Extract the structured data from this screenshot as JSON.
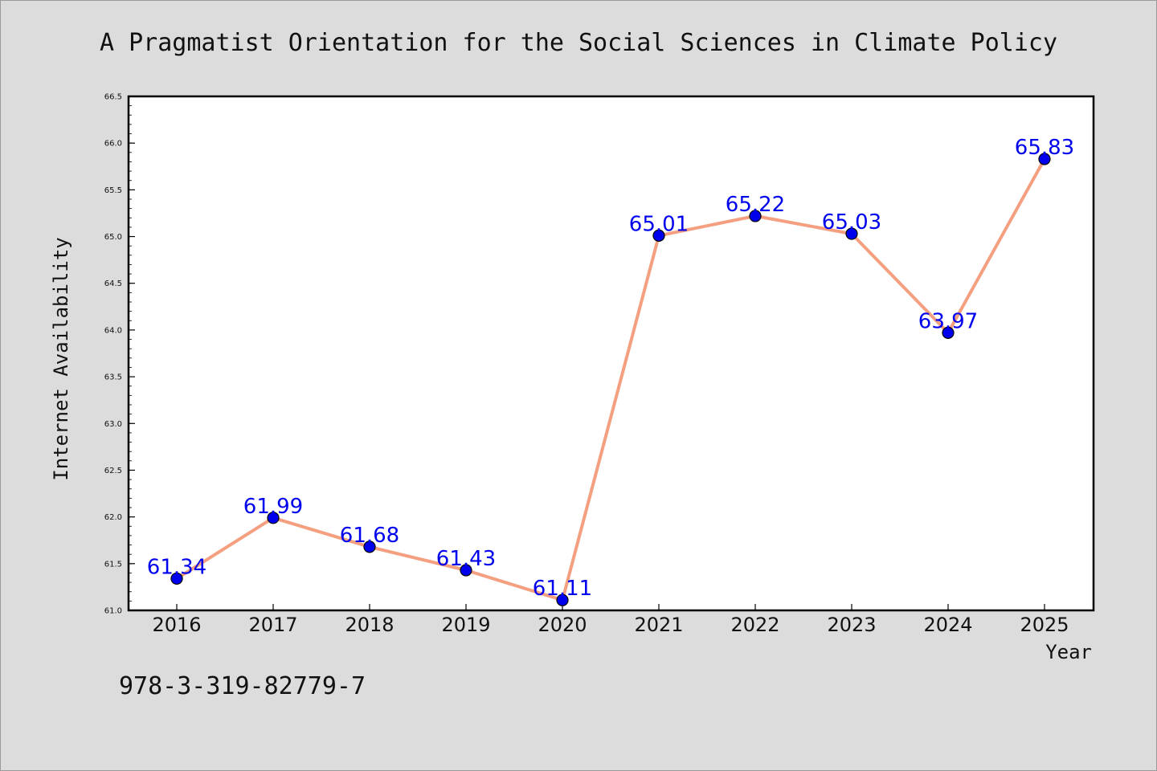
{
  "chart_data": {
    "type": "line",
    "title": "A Pragmatist Orientation for the Social Sciences in Climate Policy",
    "xlabel": "Year",
    "ylabel": "Internet Availability",
    "categories": [
      "2016",
      "2017",
      "2018",
      "2019",
      "2020",
      "2021",
      "2022",
      "2023",
      "2024",
      "2025"
    ],
    "values": [
      61.34,
      61.99,
      61.68,
      61.43,
      61.11,
      65.01,
      65.22,
      65.03,
      63.97,
      65.83
    ],
    "data_labels": [
      "61.34",
      "61.99",
      "61.68",
      "61.43",
      "61.11",
      "65.01",
      "65.22",
      "65.03",
      "63.97",
      "65.83"
    ],
    "ylim": [
      61.0,
      66.5
    ],
    "yticks": [
      "61.0",
      "61.5",
      "62.0",
      "62.5",
      "63.0",
      "63.5",
      "64.0",
      "64.5",
      "65.0",
      "65.5",
      "66.0",
      "66.5"
    ],
    "grid": false,
    "legend": "none",
    "colors": {
      "line": "#f4a080",
      "marker": "#0000ee",
      "label": "#0000ee",
      "background": "#dcdcdc",
      "plot_area": "#ffffff"
    }
  },
  "footer_note": "978-3-319-82779-7"
}
